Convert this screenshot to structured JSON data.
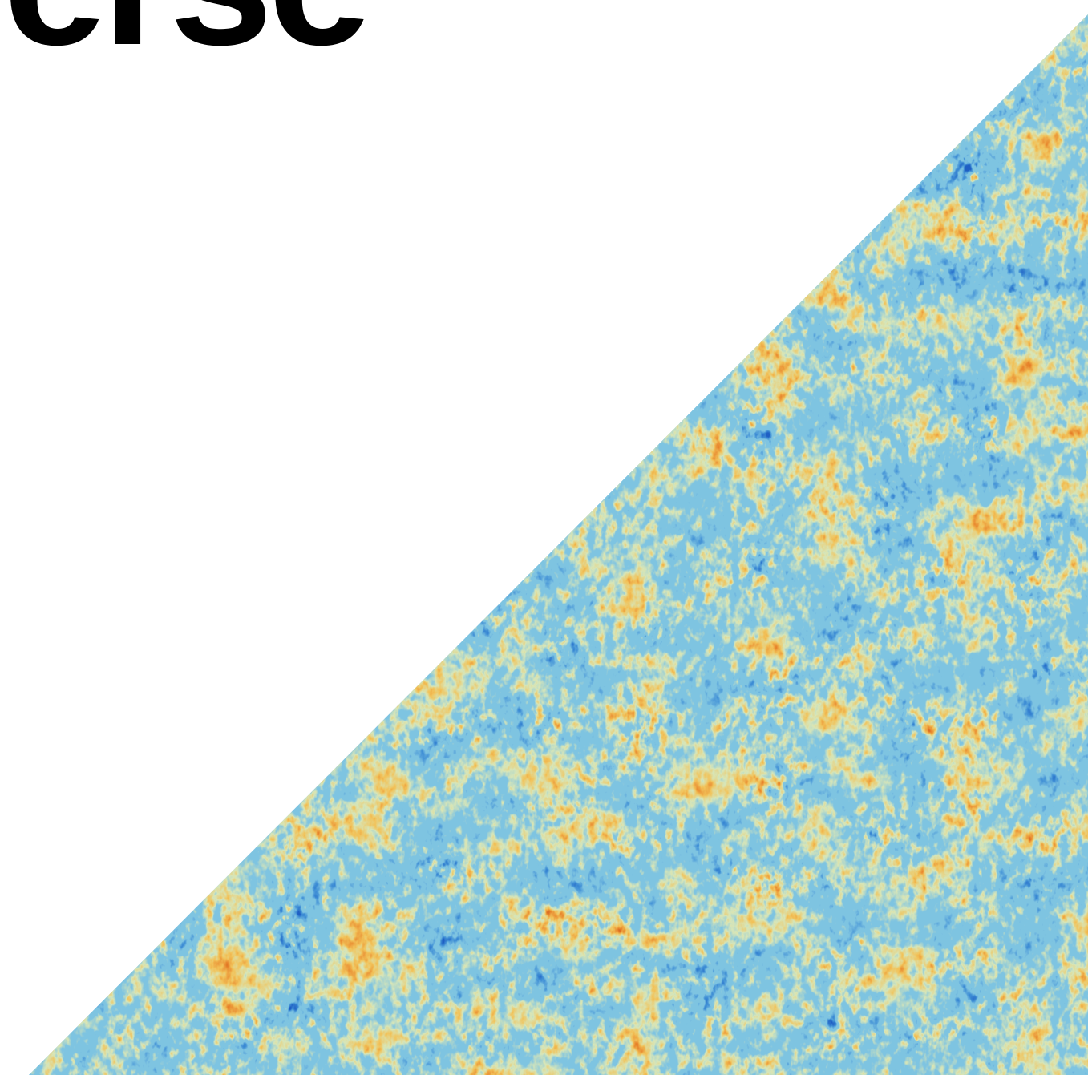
{
  "headline": {
    "text": "erse"
  },
  "artwork": {
    "icon": "cosmic-microwave-background-texture",
    "palette": {
      "background": "#ffffff",
      "text": "#000000",
      "deep_blue": "#1f5fc4",
      "blue": "#3f8fd6",
      "sky": "#7fc4e2",
      "pale": "#d8e6b8",
      "yellow": "#f2c35a",
      "orange": "#e8852c",
      "red_orange": "#c9521c",
      "dark_red": "#7a1c08"
    }
  }
}
